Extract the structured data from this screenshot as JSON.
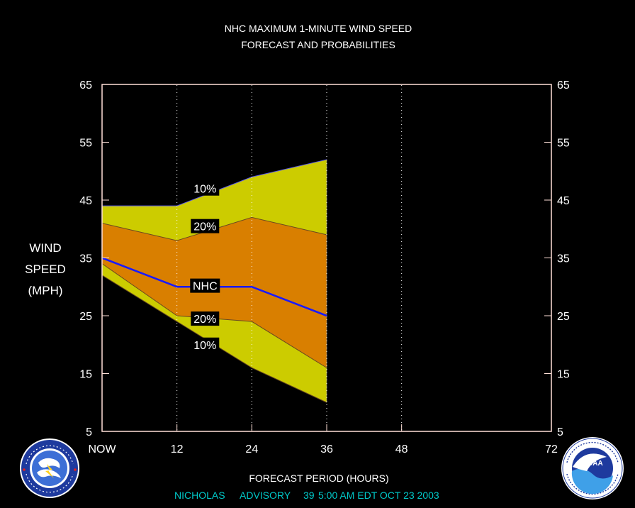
{
  "title_line1": "NHC MAXIMUM 1-MINUTE WIND SPEED",
  "title_line2": "FORECAST AND PROBABILITIES",
  "ylabel_lines": [
    "WIND",
    "SPEED",
    "(MPH)"
  ],
  "xlabel": "FORECAST PERIOD (HOURS)",
  "advisory": {
    "storm": "NICHOLAS",
    "label": "ADVISORY",
    "number": "39",
    "time": "5:00 AM EDT OCT 23 2003"
  },
  "colors": {
    "band_10": "#cccc00",
    "band_20": "#d97f00",
    "nhc_line": "#1a1aff",
    "frame": "#ffe0d8",
    "advisory_text": "#00c8c8"
  },
  "logos": {
    "left": {
      "icon": "nws-seal-icon",
      "text": "NATIONAL WEATHER SERVICE"
    },
    "right": {
      "icon": "noaa-seal-icon",
      "text": "NATIONAL OCEANIC AND ATMOSPHERIC ADMINISTRATION",
      "center": "NOAA"
    }
  },
  "chart_data": {
    "type": "area",
    "xlim": [
      0,
      72
    ],
    "ylim": [
      5,
      65
    ],
    "x_ticks": [
      0,
      12,
      24,
      36,
      48,
      72
    ],
    "x_tick_labels": [
      "NOW",
      "12",
      "24",
      "36",
      "48",
      "72"
    ],
    "y_ticks": [
      5,
      15,
      25,
      35,
      45,
      55,
      65
    ],
    "y_tick_labels": [
      "5",
      "15",
      "25",
      "35",
      "45",
      "55",
      "65"
    ],
    "grid_x": [
      12,
      24,
      36,
      48
    ],
    "x": [
      0,
      12,
      24,
      36
    ],
    "series": [
      {
        "name": "10%",
        "bound": "upper",
        "values": [
          44,
          44,
          49,
          52
        ]
      },
      {
        "name": "20%",
        "bound": "upper",
        "values": [
          41,
          38,
          42,
          39
        ]
      },
      {
        "name": "NHC",
        "values": [
          35,
          30,
          30,
          25
        ]
      },
      {
        "name": "20%",
        "bound": "lower",
        "values": [
          34,
          25,
          24,
          16
        ]
      },
      {
        "name": "10%",
        "bound": "lower",
        "values": [
          32,
          24,
          16,
          10
        ]
      }
    ],
    "annotations": [
      {
        "text": "10%",
        "x": 16.5,
        "y": 47
      },
      {
        "text": "20%",
        "x": 16.5,
        "y": 40.5
      },
      {
        "text": "NHC",
        "x": 16.5,
        "y": 30.2
      },
      {
        "text": "20%",
        "x": 16.5,
        "y": 24.5
      },
      {
        "text": "10%",
        "x": 16.5,
        "y": 20
      }
    ]
  }
}
